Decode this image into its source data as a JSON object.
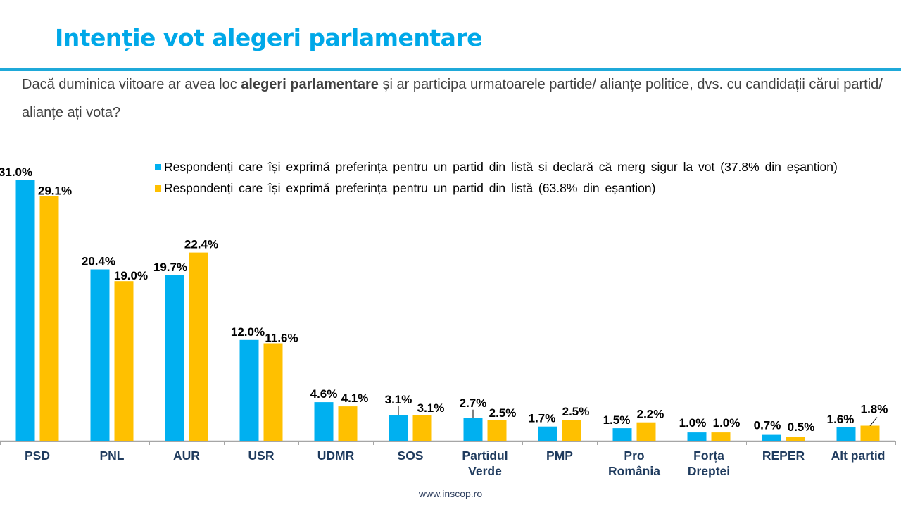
{
  "header": {
    "title": "Intenție vot alegeri parlamentare",
    "question_part1": "Dacă duminica viitoare ar avea loc ",
    "question_bold": "alegeri parlamentare",
    "question_part2": " și ar participa urmatoarele partide/ alianțe politice, dvs. cu candidații cărui partid/ alianțe ați vota?"
  },
  "colors": {
    "accent": "#00A8E8",
    "rule": "#1FA9D9",
    "series_1": "#00B0F0",
    "series_2": "#FFC000",
    "category_label": "#1F3B5E",
    "axis": "#A6A6A6"
  },
  "footer": {
    "url": "www.inscop.ro"
  },
  "chart_data": {
    "type": "bar",
    "title": "Intenție vot alegeri parlamentare",
    "xlabel": "",
    "ylabel": "",
    "ylim": [
      0,
      31
    ],
    "grid": false,
    "legend_position": "top-right",
    "value_format": "percent_one_decimal",
    "categories": [
      "PSD",
      "PNL",
      "AUR",
      "USR",
      "UDMR",
      "SOS",
      "Partidul\nVerde",
      "PMP",
      "Pro\nRomânia",
      "Forța\nDreptei",
      "REPER",
      "Alt partid"
    ],
    "series": [
      {
        "name": "Respondenți care își exprimă preferința pentru un partid din listă si declară că merg sigur la vot (37.8% din eșantion)",
        "color": "#00B0F0",
        "values": [
          31.0,
          20.4,
          19.7,
          12.0,
          4.6,
          3.1,
          2.7,
          1.7,
          1.5,
          1.0,
          0.7,
          1.6
        ],
        "labels": [
          "31.0%",
          "20.4%",
          "19.7%",
          "12.0%",
          "4.6%",
          "3.1%",
          "2.7%",
          "1.7%",
          "1.5%",
          "1.0%",
          "0.7%",
          "1.6%"
        ]
      },
      {
        "name": "Respondenți care își exprimă preferința pentru un partid din listă (63.8% din eșantion)",
        "color": "#FFC000",
        "values": [
          29.1,
          19.0,
          22.4,
          11.6,
          4.1,
          3.1,
          2.5,
          2.5,
          2.2,
          1.0,
          0.5,
          1.8
        ],
        "labels": [
          "29.1%",
          "19.0%",
          "22.4%",
          "11.6%",
          "4.1%",
          "3.1%",
          "2.5%",
          "2.5%",
          "2.2%",
          "1.0%",
          "0.5%",
          "1.8%"
        ]
      }
    ]
  }
}
